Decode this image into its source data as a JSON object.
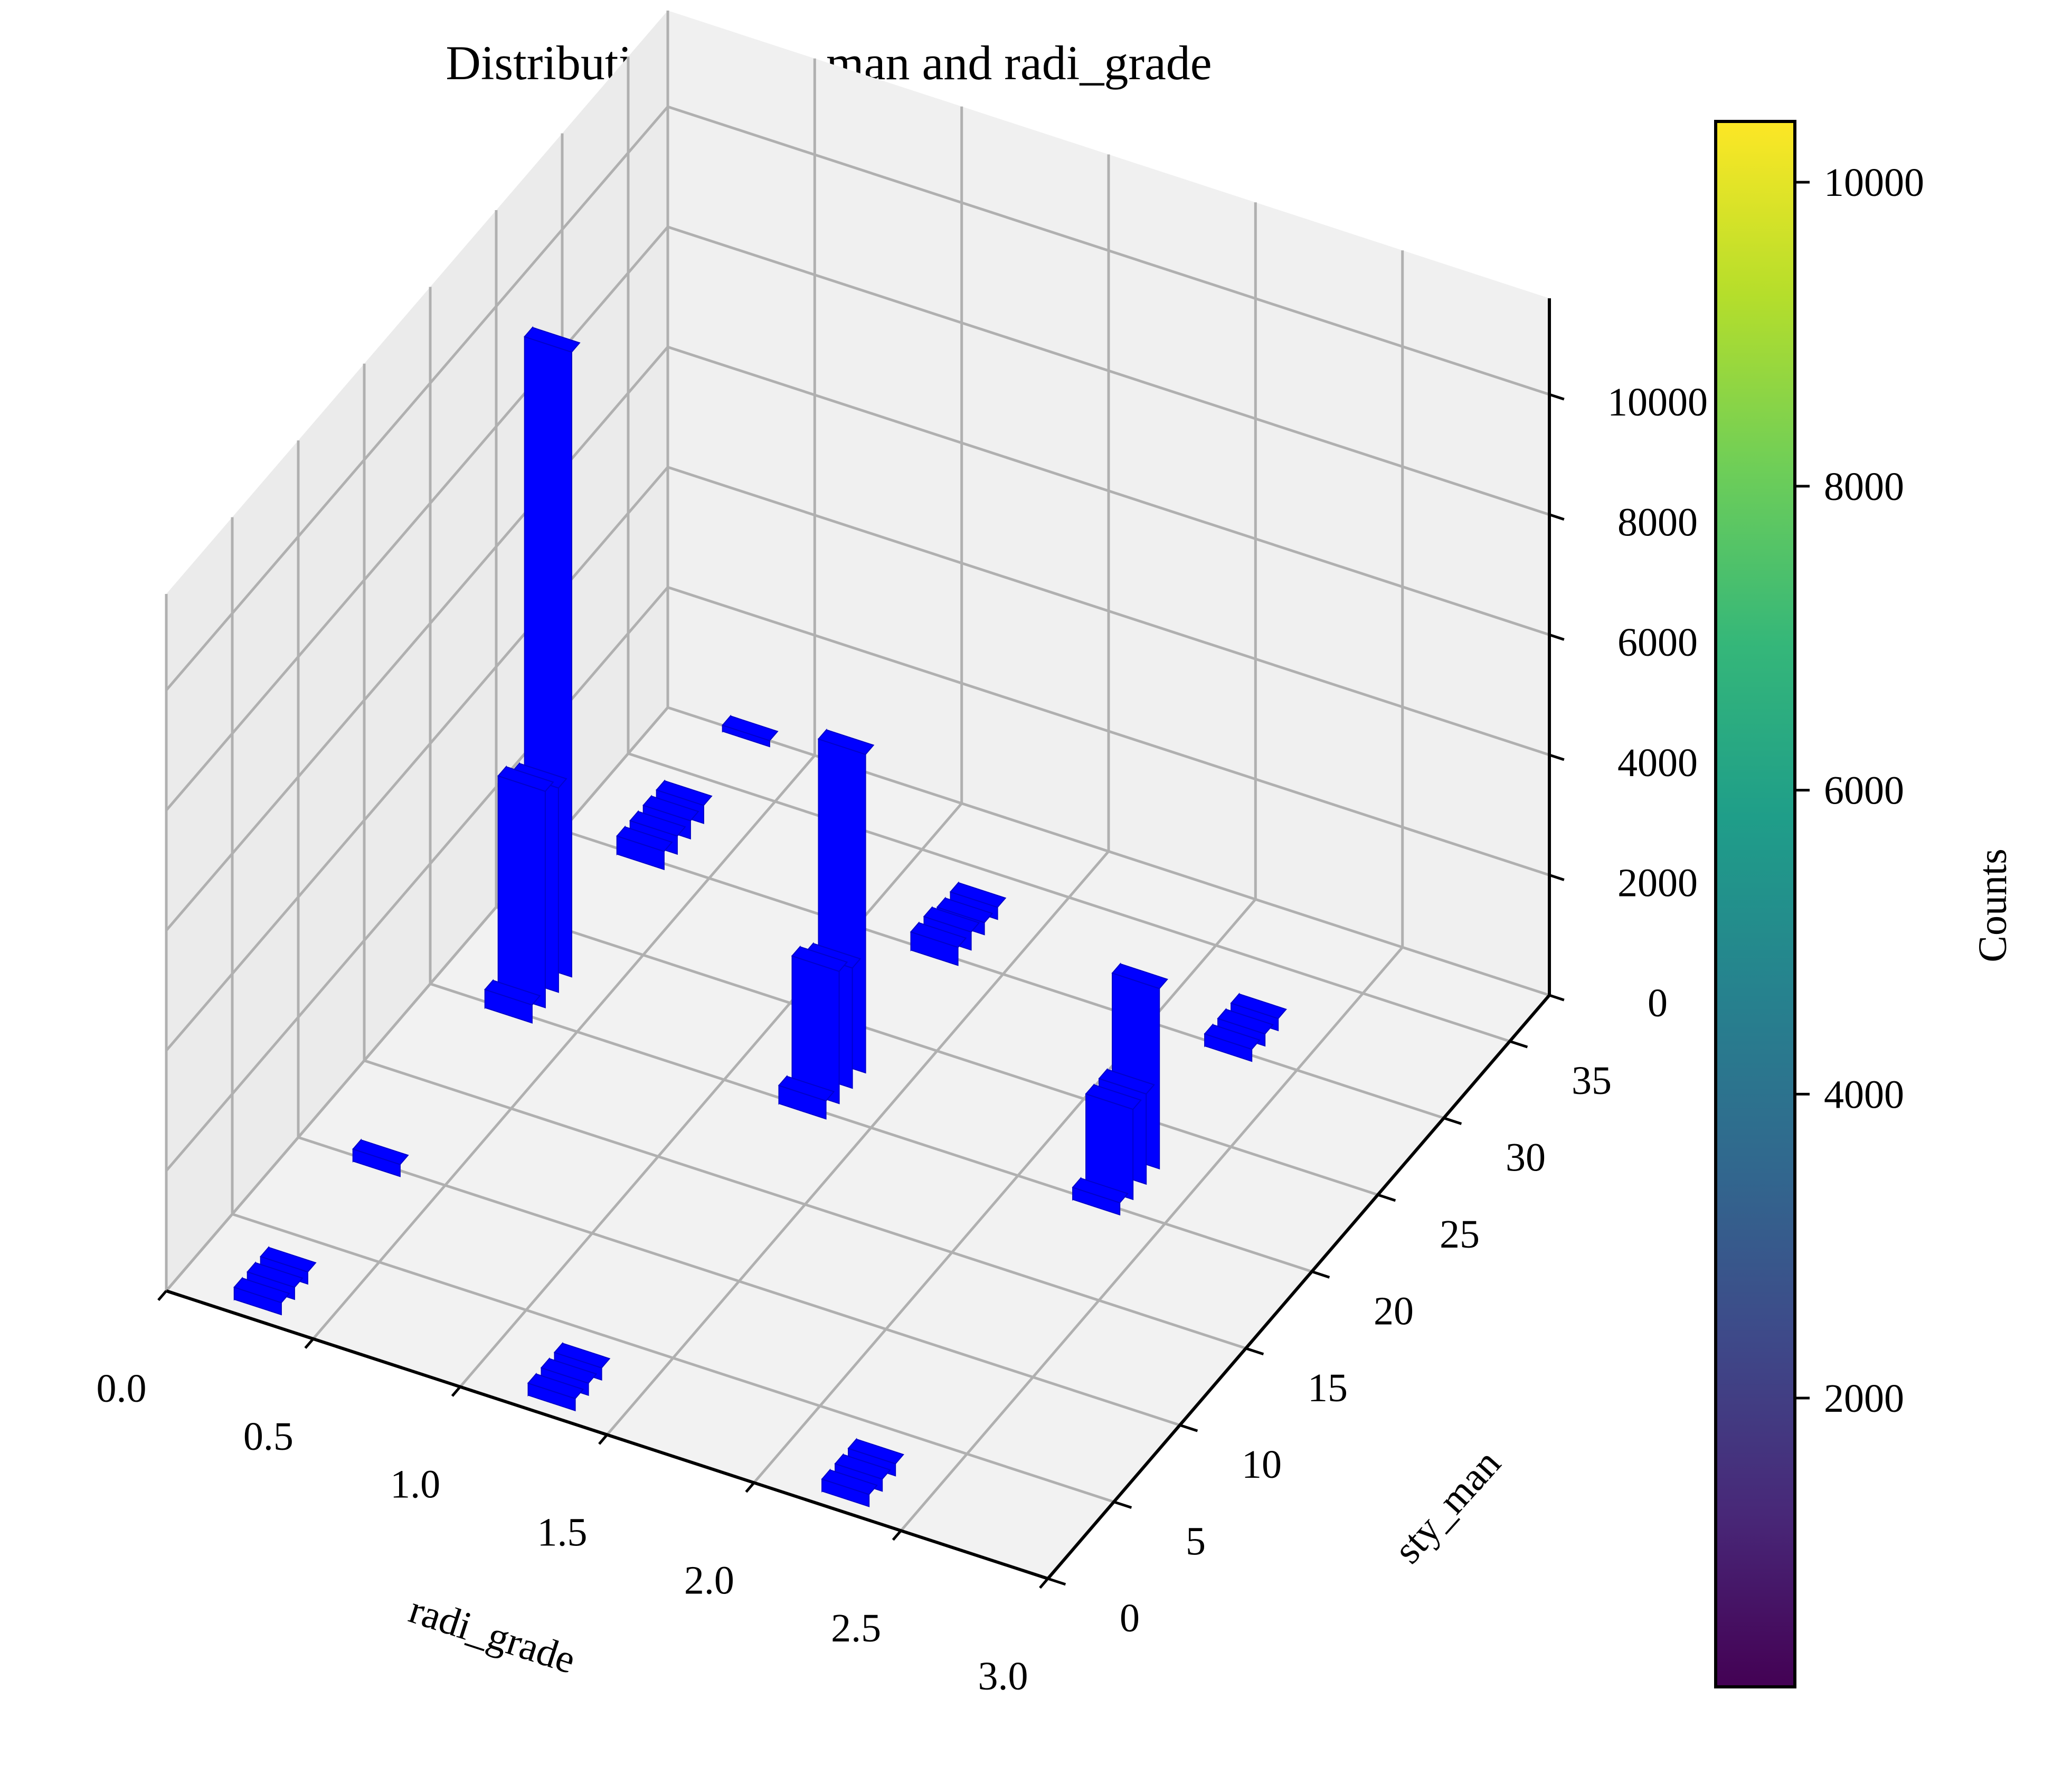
{
  "chart_data": {
    "type": "bar",
    "subtype": "3d-histogram",
    "title": "Distribution of sty_man and radi_grade",
    "xlabel": "radi_grade",
    "ylabel": "sty_man",
    "zlabel": "",
    "x_ticks": [
      "0.0",
      "0.5",
      "1.0",
      "1.5",
      "2.0",
      "2.5",
      "3.0"
    ],
    "y_ticks": [
      "0",
      "5",
      "10",
      "15",
      "20",
      "25",
      "30",
      "35"
    ],
    "z_ticks": [
      "0",
      "2000",
      "4000",
      "6000",
      "8000",
      "10000"
    ],
    "xlim": [
      0,
      3
    ],
    "ylim": [
      0,
      38
    ],
    "zlim": [
      0,
      11600
    ],
    "grid": true,
    "bar_color": "#0000ff",
    "bars": [
      {
        "x": 0.2,
        "y": 1,
        "z": 200
      },
      {
        "x": 0.2,
        "y": 2,
        "z": 200
      },
      {
        "x": 0.2,
        "y": 3,
        "z": 200
      },
      {
        "x": 0.2,
        "y": 10,
        "z": 200
      },
      {
        "x": 0.2,
        "y": 20,
        "z": 300
      },
      {
        "x": 0.2,
        "y": 21,
        "z": 3600
      },
      {
        "x": 0.2,
        "y": 22,
        "z": 3400
      },
      {
        "x": 0.2,
        "y": 23,
        "z": 10400
      },
      {
        "x": 0.2,
        "y": 30,
        "z": 300
      },
      {
        "x": 0.2,
        "y": 31,
        "z": 300
      },
      {
        "x": 0.2,
        "y": 32,
        "z": 300
      },
      {
        "x": 0.2,
        "y": 33,
        "z": 300
      },
      {
        "x": 0.2,
        "y": 38,
        "z": 100
      },
      {
        "x": 1.2,
        "y": 1,
        "z": 200
      },
      {
        "x": 1.2,
        "y": 2,
        "z": 200
      },
      {
        "x": 1.2,
        "y": 3,
        "z": 200
      },
      {
        "x": 1.2,
        "y": 20,
        "z": 300
      },
      {
        "x": 1.2,
        "y": 21,
        "z": 2200
      },
      {
        "x": 1.2,
        "y": 22,
        "z": 2000
      },
      {
        "x": 1.2,
        "y": 23,
        "z": 5300
      },
      {
        "x": 1.2,
        "y": 30,
        "z": 300
      },
      {
        "x": 1.2,
        "y": 31,
        "z": 300
      },
      {
        "x": 1.2,
        "y": 32,
        "z": 200
      },
      {
        "x": 1.2,
        "y": 33,
        "z": 200
      },
      {
        "x": 2.2,
        "y": 1,
        "z": 200
      },
      {
        "x": 2.2,
        "y": 2,
        "z": 200
      },
      {
        "x": 2.2,
        "y": 3,
        "z": 200
      },
      {
        "x": 2.2,
        "y": 20,
        "z": 200
      },
      {
        "x": 2.2,
        "y": 21,
        "z": 1500
      },
      {
        "x": 2.2,
        "y": 22,
        "z": 1500
      },
      {
        "x": 2.2,
        "y": 23,
        "z": 3000
      },
      {
        "x": 2.2,
        "y": 30,
        "z": 200
      },
      {
        "x": 2.2,
        "y": 31,
        "z": 200
      },
      {
        "x": 2.2,
        "y": 32,
        "z": 200
      }
    ],
    "colorbar": {
      "label": "Counts",
      "ticks": [
        "2000",
        "4000",
        "6000",
        "8000",
        "10000"
      ],
      "min": 100,
      "max": 10400,
      "colormap": [
        "#440154",
        "#482878",
        "#3e4989",
        "#31688e",
        "#26828e",
        "#1f9e89",
        "#35b779",
        "#6ece58",
        "#b5de2b",
        "#fde725"
      ]
    }
  }
}
